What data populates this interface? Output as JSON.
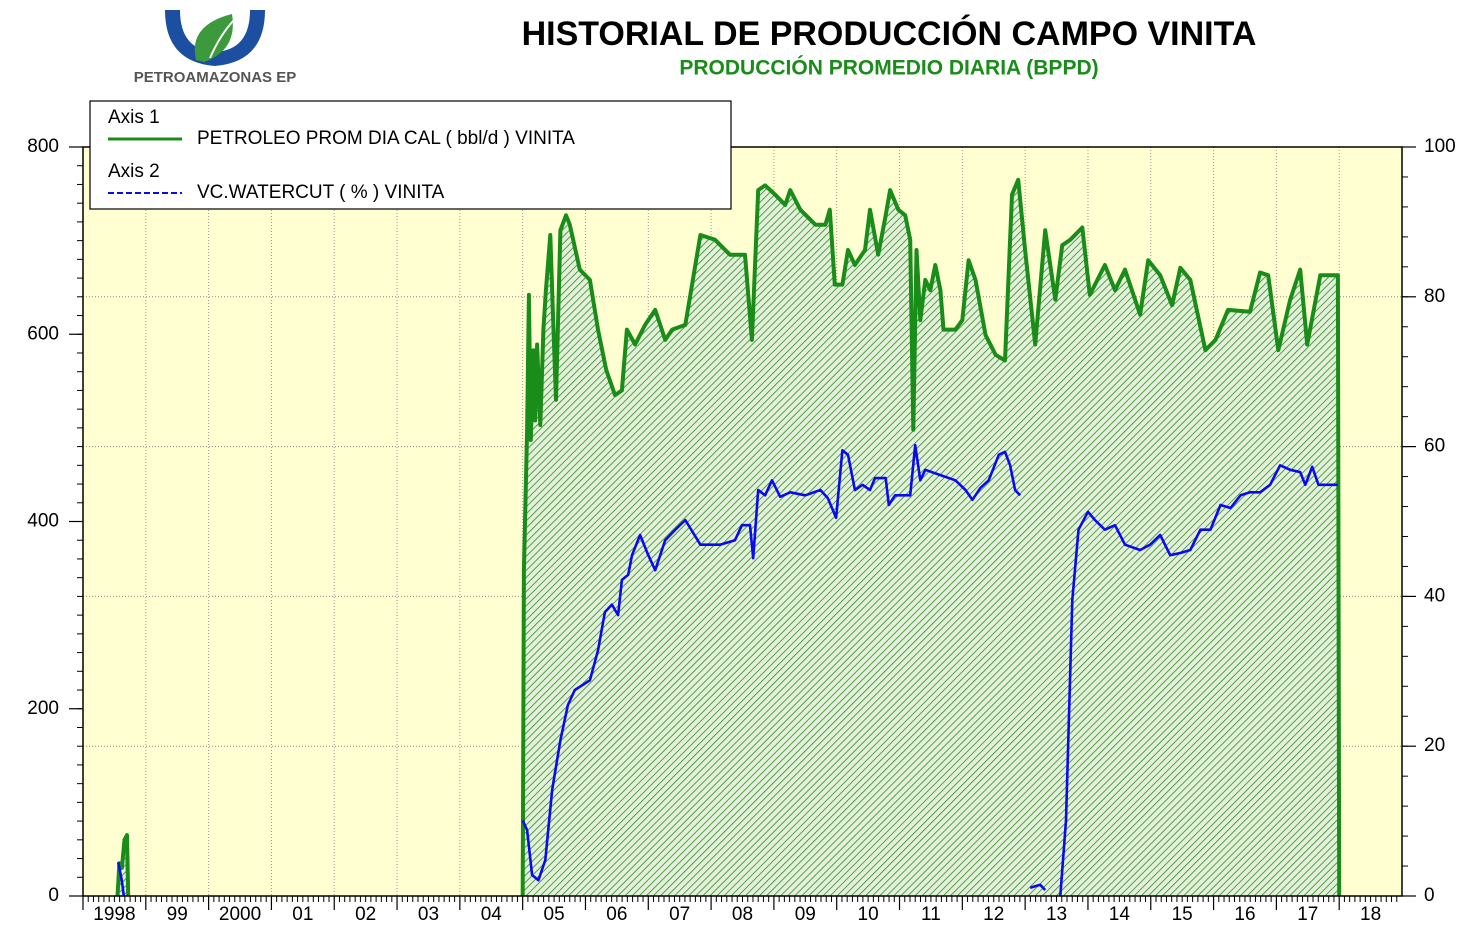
{
  "chart_data": {
    "type": "line",
    "logo_text": "PETROAMAZONAS EP",
    "title": "HISTORIAL DE PRODUCCIÓN CAMPO VINITA",
    "subtitle": "PRODUCCIÓN PROMEDIO DIARIA (BPPD)",
    "xlim": [
      1998,
      2019
    ],
    "xticks": [
      {
        "value": 1998,
        "label": "1998"
      },
      {
        "value": 1999,
        "label": "99"
      },
      {
        "value": 2000,
        "label": "2000"
      },
      {
        "value": 2001,
        "label": "01"
      },
      {
        "value": 2002,
        "label": "02"
      },
      {
        "value": 2003,
        "label": "03"
      },
      {
        "value": 2004,
        "label": "04"
      },
      {
        "value": 2005,
        "label": "05"
      },
      {
        "value": 2006,
        "label": "06"
      },
      {
        "value": 2007,
        "label": "07"
      },
      {
        "value": 2008,
        "label": "08"
      },
      {
        "value": 2009,
        "label": "09"
      },
      {
        "value": 2010,
        "label": "10"
      },
      {
        "value": 2011,
        "label": "11"
      },
      {
        "value": 2012,
        "label": "12"
      },
      {
        "value": 2013,
        "label": "13"
      },
      {
        "value": 2014,
        "label": "14"
      },
      {
        "value": 2015,
        "label": "15"
      },
      {
        "value": 2016,
        "label": "16"
      },
      {
        "value": 2017,
        "label": "17"
      },
      {
        "value": 2018,
        "label": "18"
      }
    ],
    "ylim": [
      0,
      800
    ],
    "yticks": [
      0,
      200,
      400,
      600,
      800
    ],
    "y2lim": [
      0,
      100
    ],
    "y2ticks": [
      0,
      20,
      40,
      60,
      80,
      100
    ],
    "grid": "y2",
    "legend": "upper left",
    "series": [
      {
        "legend_group": "Axis 1",
        "name": "PETROLEO PROM DIA CAL ( bbl/d ) VINITA",
        "color": "#1a8c1a",
        "axis": "y",
        "area": true,
        "dash": false,
        "x": [
          1998.55,
          1998.58,
          1998.62,
          1998.66,
          1998.7,
          1998.72,
          null,
          2005.0,
          2005.02,
          2005.07,
          2005.1,
          2005.13,
          2005.17,
          2005.2,
          2005.23,
          2005.28,
          2005.33,
          2005.37,
          2005.44,
          2005.48,
          2005.53,
          2005.6,
          2005.69,
          2005.75,
          2005.91,
          2006.07,
          2006.2,
          2006.33,
          2006.47,
          2006.58,
          2006.66,
          2006.79,
          2006.95,
          2007.11,
          2007.27,
          2007.38,
          2007.59,
          2007.83,
          2008.06,
          2008.3,
          2008.54,
          2008.65,
          2008.75,
          2008.86,
          2009.02,
          2009.18,
          2009.26,
          2009.42,
          2009.66,
          2009.82,
          2009.89,
          2009.97,
          2010.09,
          2010.18,
          2010.29,
          2010.45,
          2010.53,
          2010.66,
          2010.78,
          2010.85,
          2010.98,
          2011.09,
          2011.17,
          2011.22,
          2011.27,
          2011.33,
          2011.41,
          2011.49,
          2011.57,
          2011.65,
          2011.7,
          2011.89,
          2012.0,
          2012.1,
          2012.21,
          2012.37,
          2012.53,
          2012.68,
          2012.79,
          2012.89,
          2013.0,
          2013.16,
          2013.32,
          2013.48,
          2013.59,
          2013.72,
          2013.91,
          2014.03,
          2014.27,
          2014.43,
          2014.59,
          2014.83,
          2014.96,
          2015.15,
          2015.34,
          2015.47,
          2015.63,
          2015.87,
          2016.03,
          2016.23,
          2016.58,
          2016.74,
          2016.87,
          2017.03,
          2017.22,
          2017.38,
          2017.49,
          2017.7,
          2017.98,
          2018.0
        ],
        "values": [
          0,
          35,
          30,
          60,
          65,
          0,
          null,
          0,
          348,
          498,
          642,
          487,
          583,
          508,
          589,
          503,
          605,
          647,
          706,
          626,
          530,
          711,
          727,
          717,
          669,
          658,
          605,
          562,
          535,
          540,
          605,
          589,
          610,
          626,
          594,
          605,
          610,
          706,
          701,
          685,
          685,
          594,
          754,
          759,
          749,
          738,
          754,
          733,
          717,
          717,
          733,
          653,
          653,
          690,
          674,
          690,
          733,
          685,
          727,
          754,
          733,
          727,
          701,
          498,
          690,
          615,
          658,
          647,
          674,
          647,
          605,
          605,
          615,
          679,
          658,
          599,
          578,
          572,
          749,
          765,
          690,
          589,
          711,
          637,
          695,
          701,
          714,
          642,
          674,
          647,
          669,
          621,
          679,
          663,
          631,
          671,
          658,
          583,
          594,
          626,
          624,
          666,
          663,
          583,
          637,
          669,
          589,
          663,
          663,
          0
        ]
      },
      {
        "legend_group": "Axis 2",
        "name": "VC.WATERCUT ( % ) VINITA",
        "color": "#0a0aee",
        "axis": "y2",
        "area": false,
        "dash": true,
        "x": [
          1998.56,
          1998.62,
          1998.65,
          null,
          2005.0,
          2005.07,
          2005.15,
          2005.25,
          2005.36,
          2005.47,
          2005.6,
          2005.72,
          2005.83,
          2006.07,
          2006.2,
          2006.31,
          2006.42,
          2006.52,
          2006.58,
          2006.68,
          2006.74,
          2006.87,
          2007.0,
          2007.11,
          2007.27,
          2007.43,
          2007.59,
          2007.83,
          2008.14,
          2008.38,
          2008.49,
          2008.62,
          2008.67,
          2008.75,
          2008.86,
          2008.97,
          2009.1,
          2009.26,
          2009.5,
          2009.74,
          2009.86,
          2009.99,
          2010.09,
          2010.18,
          2010.29,
          2010.41,
          2010.53,
          2010.61,
          2010.78,
          2010.83,
          2010.93,
          2011.17,
          2011.25,
          2011.33,
          2011.41,
          2011.65,
          2011.89,
          2012.05,
          2012.16,
          2012.29,
          2012.42,
          2012.58,
          2012.68,
          2012.76,
          2012.84,
          2012.92,
          null,
          2013.08,
          2013.24,
          2013.32,
          null,
          2013.56,
          2013.65,
          2013.75,
          2013.85,
          2014.0,
          2014.11,
          2014.27,
          2014.43,
          2014.59,
          2014.83,
          2014.99,
          2015.15,
          2015.31,
          2015.47,
          2015.63,
          2015.79,
          2015.95,
          2016.11,
          2016.27,
          2016.43,
          2016.58,
          2016.74,
          2016.9,
          2017.06,
          2017.22,
          2017.38,
          2017.46,
          2017.57,
          2017.67,
          2017.98
        ],
        "values": [
          4.5,
          2,
          0,
          null,
          10.1,
          8.8,
          2.8,
          2.1,
          4.8,
          14.2,
          20.8,
          25.5,
          27.5,
          28.8,
          32.8,
          37.9,
          38.9,
          37.5,
          42.2,
          42.9,
          45.5,
          48.2,
          45.5,
          43.5,
          47.5,
          48.9,
          50.2,
          46.9,
          46.9,
          47.5,
          49.5,
          49.5,
          45.1,
          54.2,
          53.5,
          55.5,
          53.3,
          53.9,
          53.5,
          54.2,
          53.1,
          50.5,
          59.5,
          58.9,
          54.2,
          54.9,
          54.2,
          55.8,
          55.8,
          52.2,
          53.5,
          53.5,
          60.2,
          55.5,
          56.9,
          56.2,
          55.5,
          54.2,
          52.9,
          54.5,
          55.5,
          58.9,
          59.3,
          57.5,
          54.2,
          53.5,
          null,
          1.1,
          1.5,
          0.8,
          null,
          0,
          10.1,
          39.5,
          48.9,
          51.3,
          50.2,
          48.9,
          49.5,
          46.9,
          46.2,
          46.9,
          48.2,
          45.5,
          45.8,
          46.2,
          48.9,
          48.9,
          52.2,
          51.8,
          53.5,
          53.9,
          53.9,
          54.9,
          57.5,
          56.9,
          56.6,
          54.9,
          57.3,
          54.9,
          54.9
        ]
      }
    ]
  }
}
